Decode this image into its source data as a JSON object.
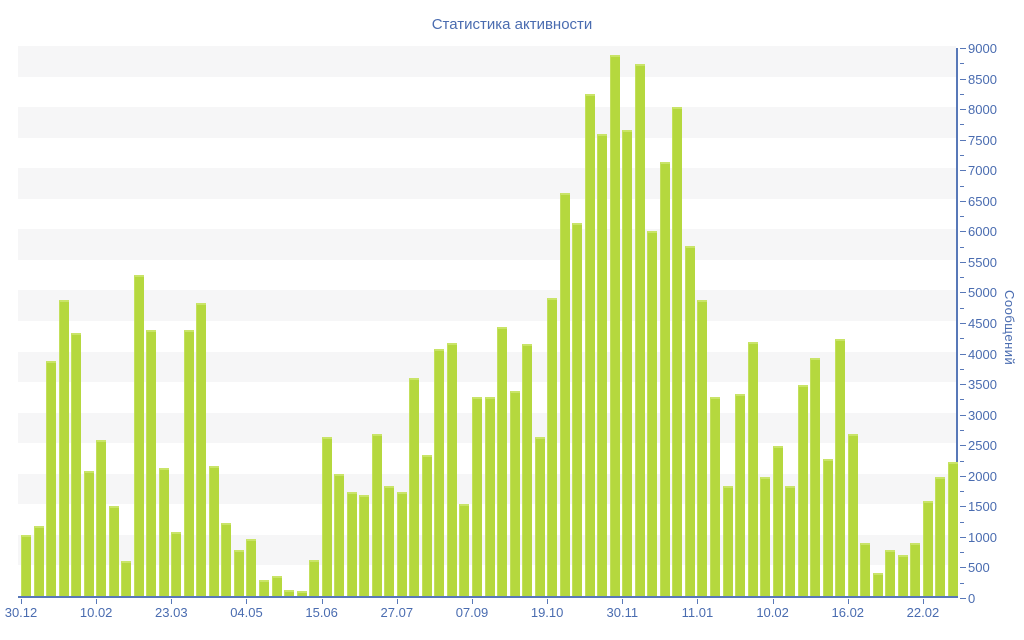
{
  "title": "Статистика активности",
  "y_axis": {
    "label": "Сообщений",
    "tick_labels": [
      "0",
      "500",
      "1000",
      "1500",
      "2000",
      "2500",
      "3000",
      "3500",
      "4000",
      "4500",
      "5000",
      "5500",
      "6000",
      "6500",
      "7000",
      "7500",
      "8000",
      "8500",
      "9000"
    ]
  },
  "x_axis": {
    "tick_labels": [
      "30.12",
      "10.02",
      "23.03",
      "04.05",
      "15.06",
      "27.07",
      "07.09",
      "19.10",
      "30.11",
      "11.01",
      "10.02",
      "16.02",
      "22.02"
    ],
    "bars_per_tick": 6
  },
  "chart_data": {
    "type": "bar",
    "title": "Статистика активности",
    "xlabel": "",
    "ylabel": "Сообщений",
    "ylim": [
      0,
      9000
    ],
    "y_major_step": 500,
    "y_minor_step": 250,
    "grid": "horizontal-stripes-every-500",
    "legend": "none",
    "x_tick_labels": [
      "30.12",
      "10.02",
      "23.03",
      "04.05",
      "15.06",
      "27.07",
      "07.09",
      "19.10",
      "30.11",
      "11.01",
      "10.02",
      "16.02",
      "22.02"
    ],
    "x_ticks_every_n_bars": 6,
    "values": [
      1000,
      1150,
      3850,
      4850,
      4300,
      2050,
      2550,
      1475,
      580,
      5250,
      4350,
      2100,
      1050,
      4350,
      4800,
      2130,
      1200,
      750,
      925,
      270,
      325,
      100,
      90,
      590,
      2600,
      2000,
      1700,
      1650,
      2650,
      1800,
      1700,
      3570,
      2300,
      4050,
      4135,
      1500,
      3250,
      3250,
      4400,
      3350,
      4125,
      2600,
      4875,
      6600,
      6100,
      8220,
      7560,
      8850,
      7630,
      8710,
      5970,
      7100,
      8000,
      5725,
      4850,
      3250,
      1800,
      3300,
      4150,
      1950,
      2450,
      1800,
      3450,
      3900,
      2250,
      4200,
      2650,
      860,
      370,
      760,
      670,
      870,
      1550,
      1950,
      2200
    ]
  },
  "colors": {
    "bar": "#b5d83e",
    "bar_highlight": "#c9e468",
    "axis": "#5878b8",
    "text": "#4a6cb0",
    "stripe": "#f6f6f7",
    "background": "#ffffff"
  }
}
